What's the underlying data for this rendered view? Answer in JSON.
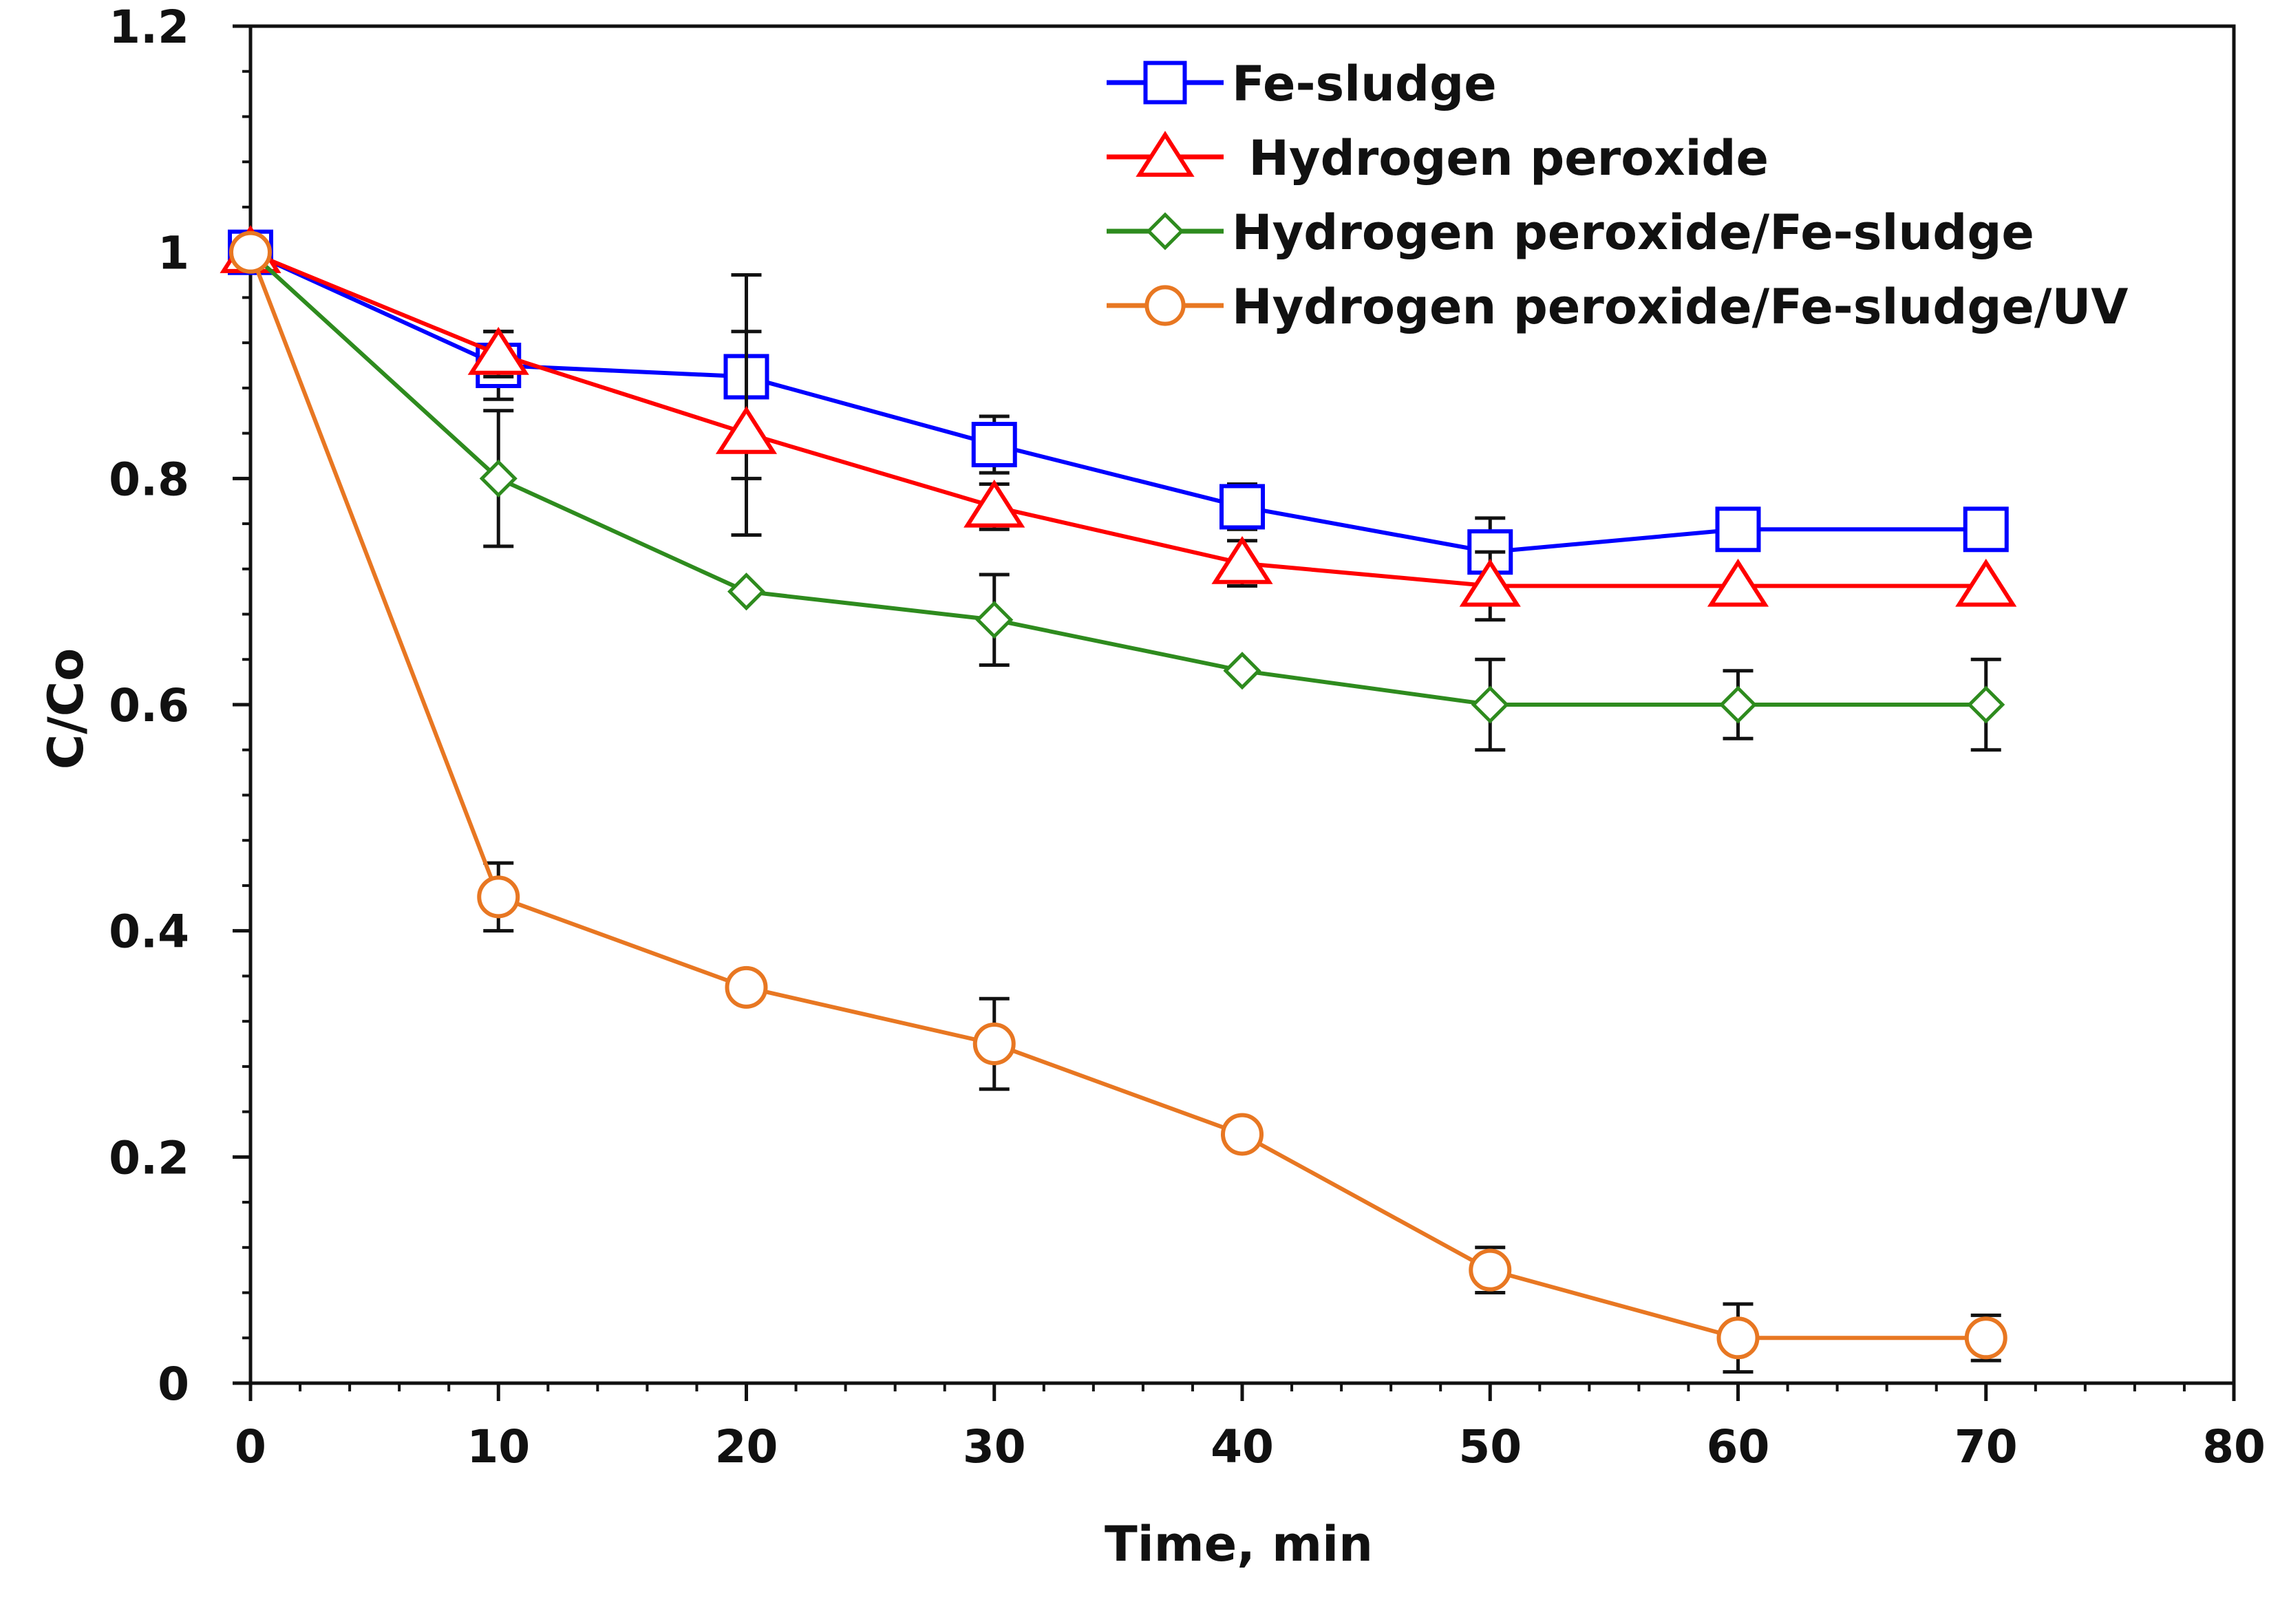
{
  "chart_data": {
    "type": "line",
    "title": "",
    "xlabel": "Time, min",
    "ylabel": "C/Co",
    "xlim": [
      0,
      80
    ],
    "ylim": [
      0,
      1.2
    ],
    "x_ticks": [
      0,
      10,
      20,
      30,
      40,
      50,
      60,
      70,
      80
    ],
    "x_tick_labels": [
      "0",
      "10",
      "20",
      "30",
      "40",
      "50",
      "60",
      "70",
      "80"
    ],
    "y_ticks": [
      0,
      0.2,
      0.4,
      0.6,
      0.8,
      1,
      1.2
    ],
    "y_tick_labels": [
      "0",
      "0.2",
      "0.4",
      "0.6",
      "0.8",
      "1",
      "1.2"
    ],
    "grid": false,
    "legend_position": "top-right",
    "x": [
      0,
      10,
      20,
      30,
      40,
      50,
      60,
      70
    ],
    "series": [
      {
        "name": "Fe-sludge",
        "color": "#0000ff",
        "marker": "square",
        "values": [
          1.0,
          0.9,
          0.89,
          0.83,
          0.775,
          0.735,
          0.755,
          0.755
        ],
        "errors": [
          0,
          0.03,
          0.09,
          0.025,
          0.02,
          0.03,
          0,
          0
        ]
      },
      {
        "name": " Hydrogen peroxide",
        "color": "#ff0000",
        "marker": "triangle",
        "values": [
          1.0,
          0.91,
          0.84,
          0.775,
          0.725,
          0.705,
          0.705,
          0.705
        ],
        "errors": [
          0,
          0.02,
          0.09,
          0.02,
          0.02,
          0.03,
          0,
          0
        ]
      },
      {
        "name": "Hydrogen peroxide/Fe-sludge",
        "color": "#2e8b1e",
        "marker": "diamond",
        "values": [
          1.0,
          0.8,
          0.7,
          0.675,
          0.63,
          0.6,
          0.6,
          0.6
        ],
        "errors": [
          0,
          0.06,
          0,
          0.04,
          0,
          0.04,
          0.03,
          0.04
        ]
      },
      {
        "name": "Hydrogen peroxide/Fe-sludge/UV",
        "color": "#e87722",
        "marker": "circle",
        "values": [
          1.0,
          0.43,
          0.35,
          0.3,
          0.22,
          0.1,
          0.04,
          0.04
        ],
        "errors": [
          0,
          0.03,
          0,
          0.04,
          0,
          0.02,
          0.03,
          0.02
        ]
      }
    ]
  }
}
